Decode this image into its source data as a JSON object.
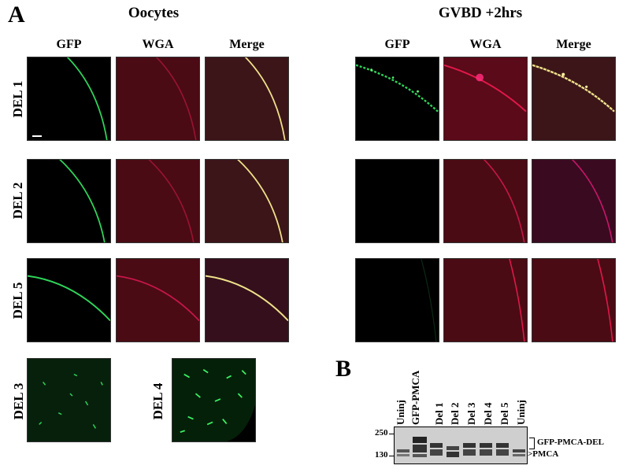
{
  "panel_a": {
    "letter": "A",
    "group_oocytes": "Oocytes",
    "group_gvbd": "GVBD +2hrs",
    "columns": [
      "GFP",
      "WGA",
      "Merge"
    ],
    "rows": [
      "DEL 1",
      "DEL 2",
      "DEL 5"
    ],
    "extra_rows": [
      "DEL 3",
      "DEL 4"
    ]
  },
  "panel_b": {
    "letter": "B",
    "lanes": [
      "Uninj",
      "GFP-PMCA",
      "Del 1",
      "Del 2",
      "Del 3",
      "Del 4",
      "Del 5",
      "Uninj"
    ],
    "markers": [
      "250",
      "130"
    ],
    "bands": [
      "GFP-PMCA-DEL",
      "PMCA"
    ]
  },
  "colors": {
    "gfp": "#2fd45a",
    "wga": "#e0184a",
    "merge": "#f1e38a",
    "wga_bg": "#4a0b14",
    "merge_bg": "#3c1519"
  }
}
